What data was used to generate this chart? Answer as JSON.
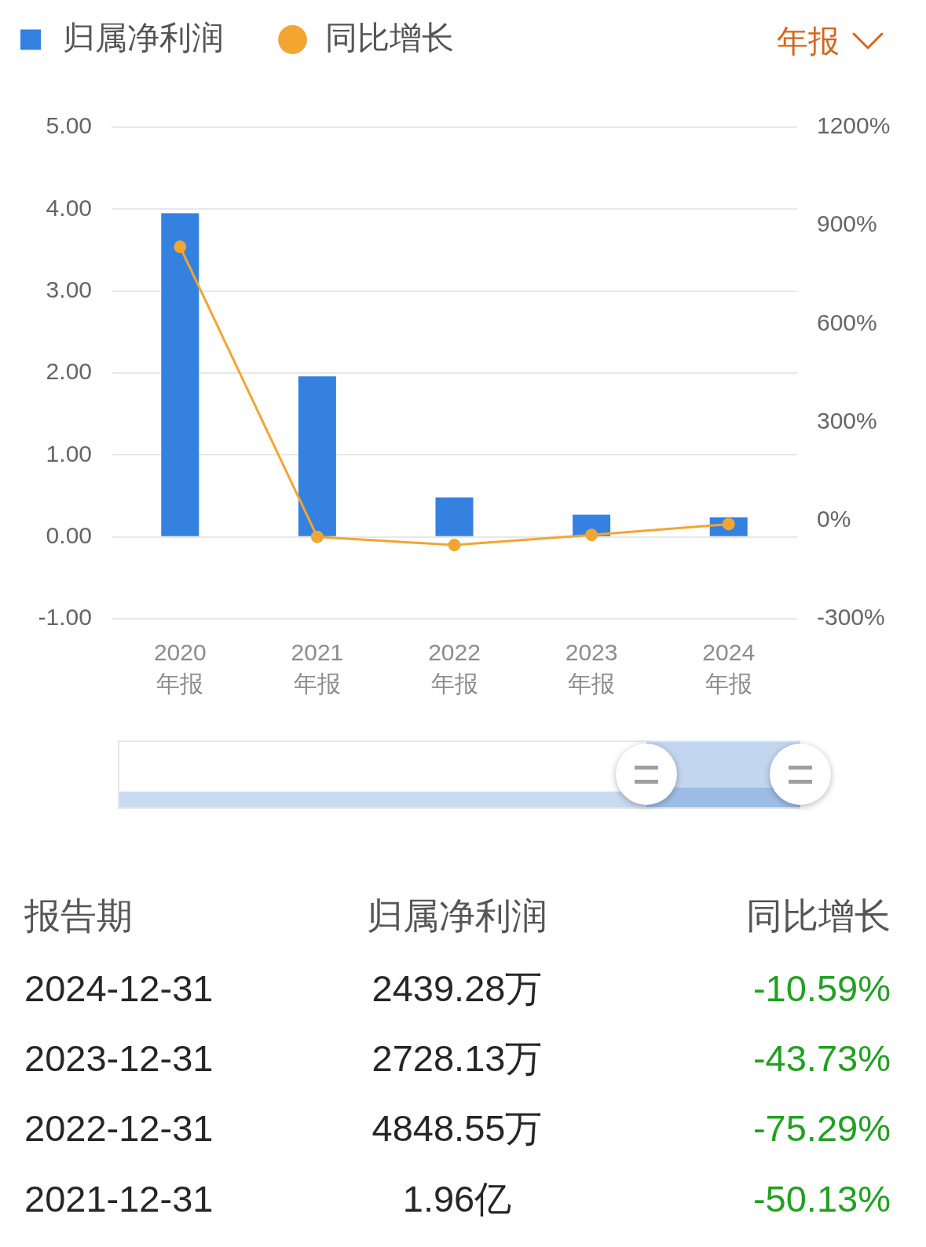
{
  "chart_data": {
    "type": "bar",
    "categories": [
      "2020\n年报",
      "2021\n年报",
      "2022\n年报",
      "2023\n年报",
      "2024\n年报"
    ],
    "series": [
      {
        "name": "归属净利润",
        "color": "#3481e0",
        "values": [
          3.95,
          1.96,
          0.48,
          0.27,
          0.24
        ]
      },
      {
        "name": "同比增长",
        "type": "line",
        "axis": "y2",
        "color": "#f2a531",
        "values": [
          835,
          -50,
          -75,
          -44,
          -11
        ]
      }
    ],
    "ylim": [
      -1,
      5
    ],
    "yticks": [
      {
        "value": -1,
        "label": "-1.00"
      },
      {
        "value": 0,
        "label": "0.00"
      },
      {
        "value": 1,
        "label": "1.00"
      },
      {
        "value": 2,
        "label": "2.00"
      },
      {
        "value": 3,
        "label": "3.00"
      },
      {
        "value": 4,
        "label": "4.00"
      },
      {
        "value": 5,
        "label": "5.00"
      }
    ],
    "y2lim": [
      -300,
      1200
    ],
    "y2ticks": [
      {
        "value": -300,
        "label": "-300%"
      },
      {
        "value": 0,
        "label": "0%"
      },
      {
        "value": 300,
        "label": "300%"
      },
      {
        "value": 600,
        "label": "600%"
      },
      {
        "value": 900,
        "label": "900%"
      },
      {
        "value": 1200,
        "label": "1200%"
      }
    ],
    "grid": "y",
    "legend": "top left",
    "marker": "circle",
    "annotations": [
      "年报",
      "报告期",
      "2024-12-31",
      "2439.28万",
      "-10.59%",
      "2023-12-31",
      "2728.13万",
      "-43.73%",
      "2022-12-31",
      "4848.55万",
      "-75.29%",
      "2021-12-31",
      "1.96亿",
      "-50.13%"
    ]
  }
}
